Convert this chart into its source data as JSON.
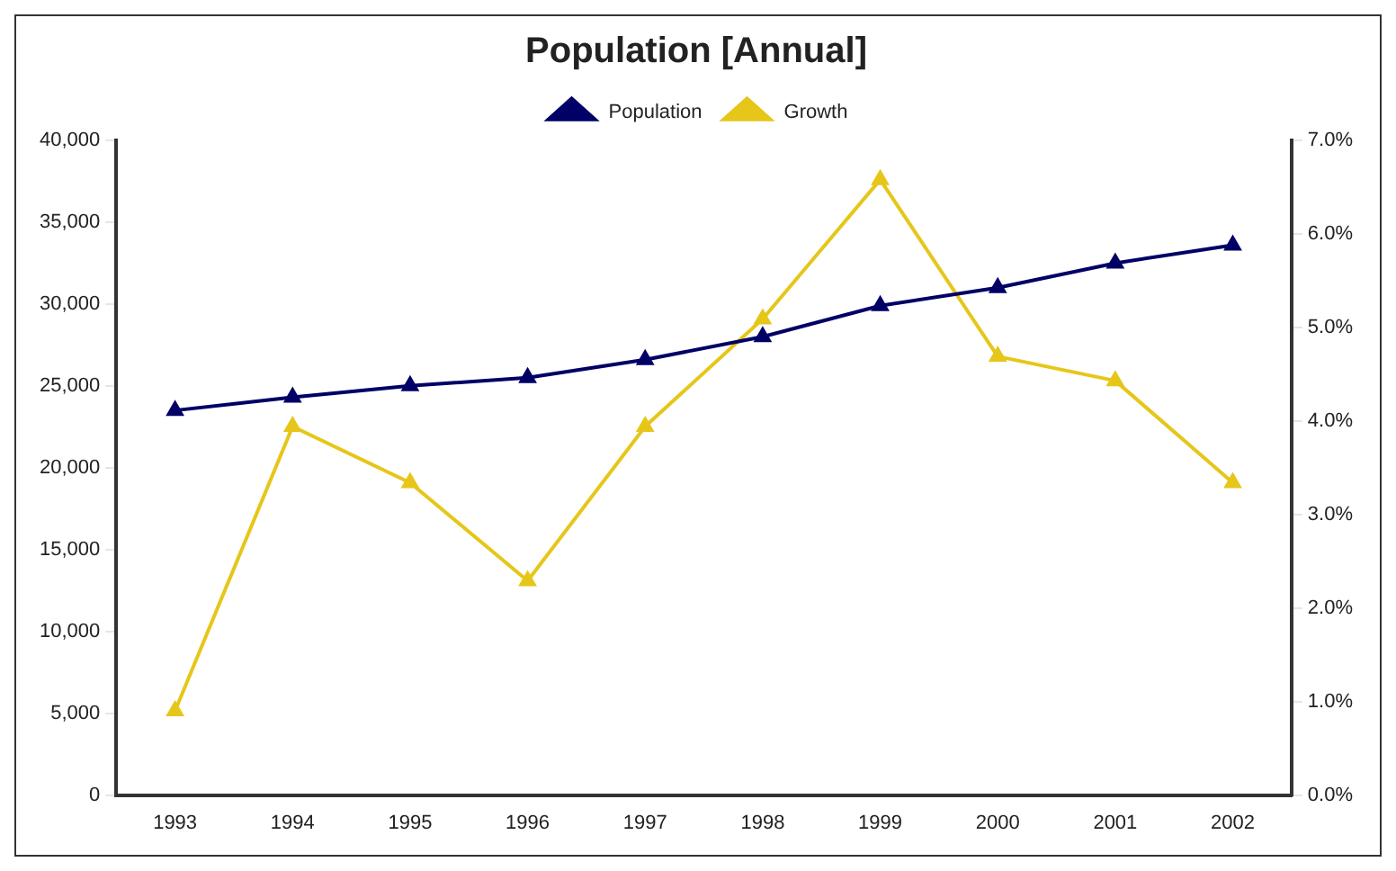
{
  "chart_data": {
    "type": "line",
    "title": "Population [Annual]",
    "categories": [
      "1993",
      "1994",
      "1995",
      "1996",
      "1997",
      "1998",
      "1999",
      "2000",
      "2001",
      "2002"
    ],
    "series": [
      {
        "name": "Population",
        "color": "#000066",
        "values": [
          23500,
          24300,
          25000,
          25500,
          26600,
          28000,
          29900,
          31000,
          32500,
          33600
        ]
      },
      {
        "name": "Growth",
        "color": "#e6c619",
        "axis": "y2",
        "values": [
          0.9,
          3.94,
          3.34,
          2.29,
          3.94,
          5.09,
          6.58,
          4.69,
          4.43,
          3.34
        ]
      }
    ],
    "ylim": [
      0,
      40000
    ],
    "yticks": [
      {
        "value": 0,
        "label": "0"
      },
      {
        "value": 5000,
        "label": "5,000"
      },
      {
        "value": 10000,
        "label": "10,000"
      },
      {
        "value": 15000,
        "label": "15,000"
      },
      {
        "value": 20000,
        "label": "20,000"
      },
      {
        "value": 25000,
        "label": "25,000"
      },
      {
        "value": 30000,
        "label": "30,000"
      },
      {
        "value": 35000,
        "label": "35,000"
      },
      {
        "value": 40000,
        "label": "40,000"
      }
    ],
    "y2lim": [
      0,
      7
    ],
    "y2ticks": [
      {
        "value": 0,
        "label": "0.0%"
      },
      {
        "value": 1,
        "label": "1.0%"
      },
      {
        "value": 2,
        "label": "2.0%"
      },
      {
        "value": 3,
        "label": "3.0%"
      },
      {
        "value": 4,
        "label": "4.0%"
      },
      {
        "value": 5,
        "label": "5.0%"
      },
      {
        "value": 6,
        "label": "6.0%"
      },
      {
        "value": 7,
        "label": "7.0%"
      }
    ],
    "grid": false,
    "legend": "top",
    "marker": "triangle"
  }
}
